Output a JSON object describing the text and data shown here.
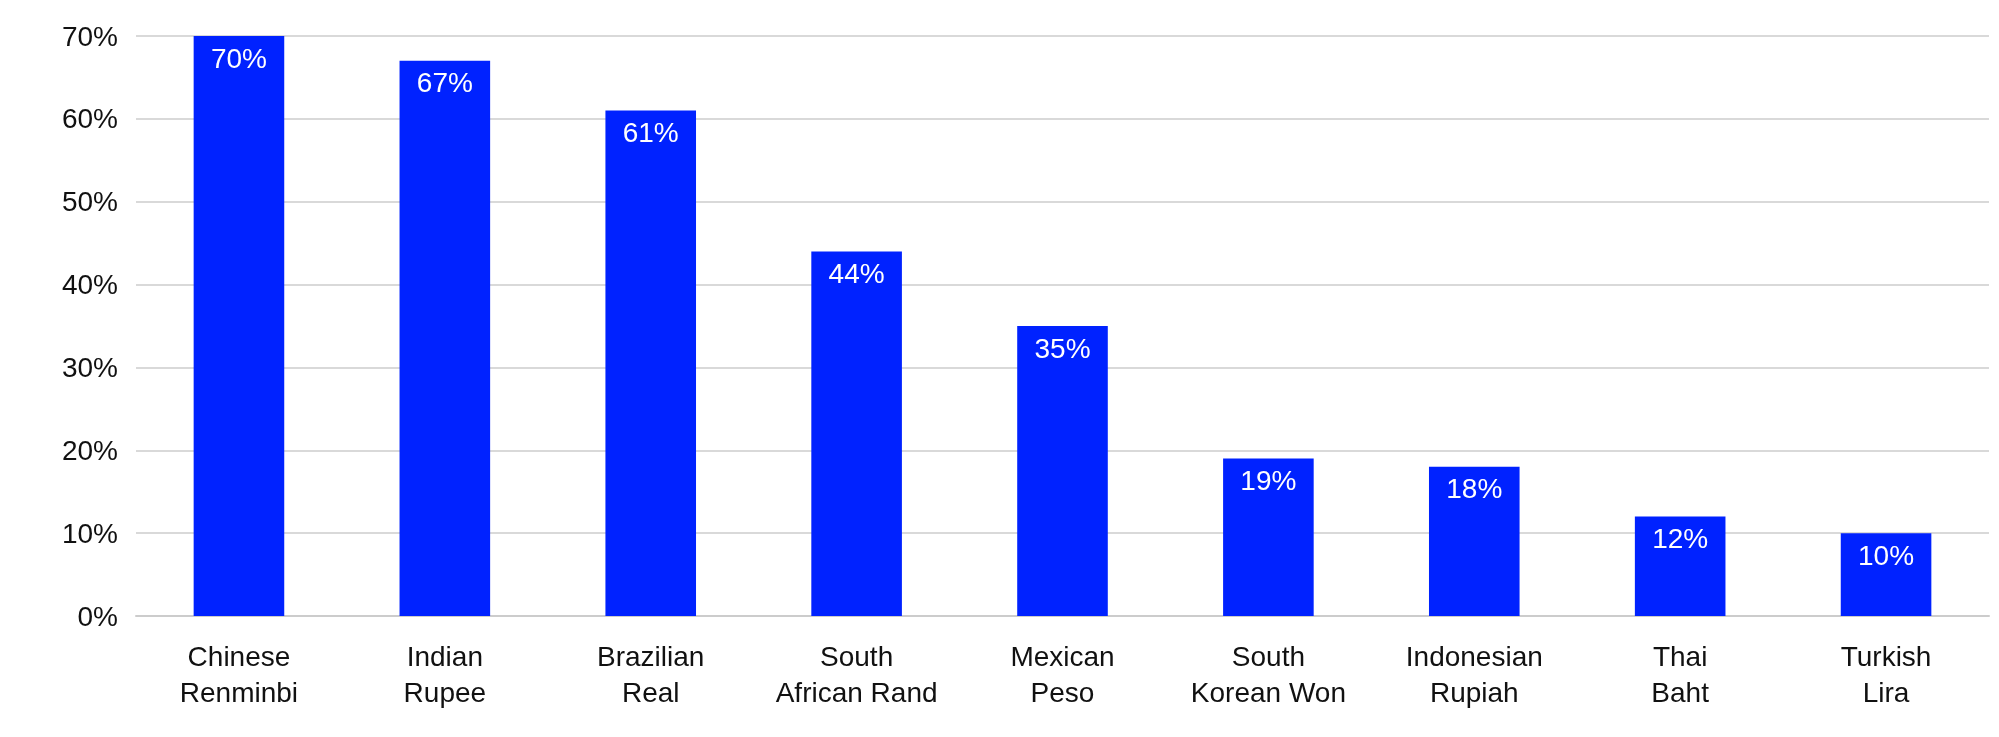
{
  "chart_data": {
    "type": "bar",
    "categories": [
      "Chinese Renminbi",
      "Indian Rupee",
      "Brazilian Real",
      "South African Rand",
      "Mexican Peso",
      "South Korean Won",
      "Indonesian Rupiah",
      "Thai Baht",
      "Turkish Lira"
    ],
    "values": [
      70,
      67,
      61,
      44,
      35,
      19,
      18,
      12,
      10
    ],
    "value_labels": [
      "70%",
      "67%",
      "61%",
      "44%",
      "35%",
      "19%",
      "18%",
      "12%",
      "10%"
    ],
    "color": "#0022ff",
    "ylim": [
      0,
      70
    ],
    "yticks": [
      {
        "value": 0,
        "label": "0%"
      },
      {
        "value": 10,
        "label": "10%"
      },
      {
        "value": 20,
        "label": "20%"
      },
      {
        "value": 30,
        "label": "30%"
      },
      {
        "value": 40,
        "label": "40%"
      },
      {
        "value": 50,
        "label": "50%"
      },
      {
        "value": 60,
        "label": "60%"
      },
      {
        "value": 70,
        "label": "70%"
      }
    ],
    "grid": "y"
  }
}
